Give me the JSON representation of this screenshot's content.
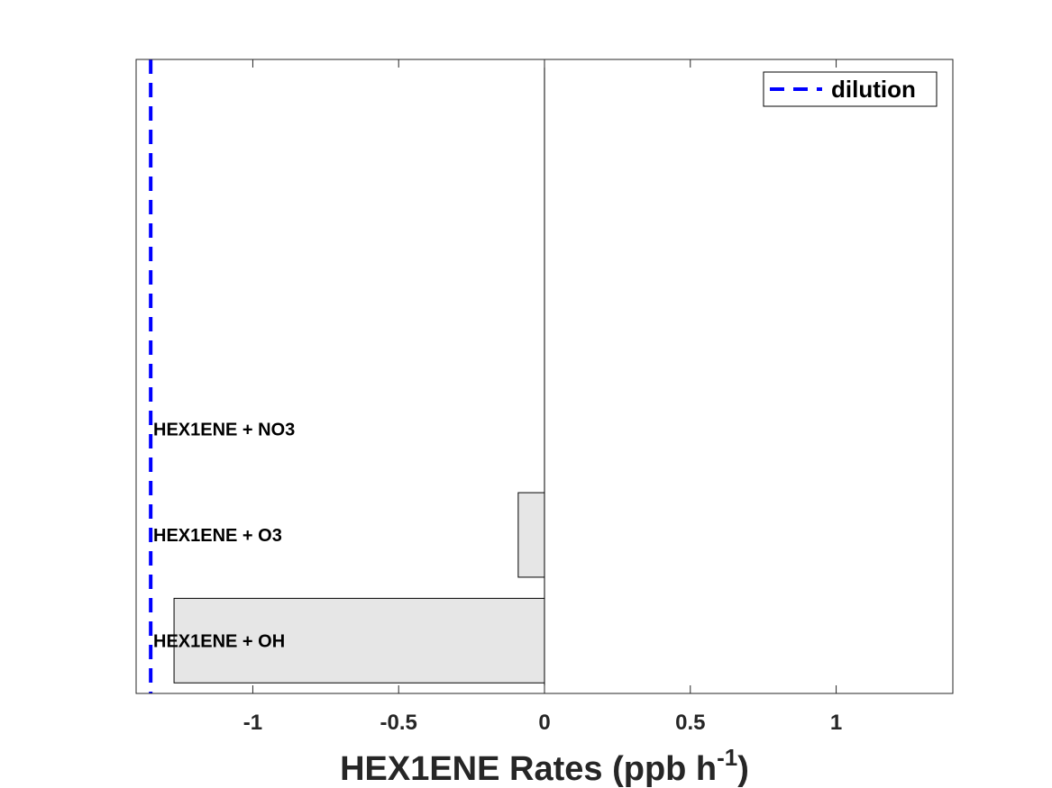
{
  "chart_data": {
    "type": "bar",
    "orientation": "horizontal",
    "categories": [
      "HEX1ENE + OH",
      "HEX1ENE + O3",
      "HEX1ENE + NO3"
    ],
    "values": [
      -1.27,
      -0.09,
      0.0
    ],
    "n_slots": 6,
    "xlim": [
      -1.4,
      1.4
    ],
    "xticks": [
      -1,
      -0.5,
      0,
      0.5,
      1
    ],
    "xtick_labels": [
      "-1",
      "-0.5",
      "0",
      "0.5",
      "1"
    ],
    "xlabel_main": "HEX1ENE Rates (ppb h",
    "xlabel_sup": "-1",
    "xlabel_end": ")",
    "dilution_value": -1.35,
    "legend": {
      "label": "dilution",
      "placement": "top-right"
    },
    "colors": {
      "bar_fill": "#e6e6e6",
      "bar_edge": "#000000",
      "dilution": "#0000ff",
      "text": "#262626"
    },
    "grid": false
  }
}
